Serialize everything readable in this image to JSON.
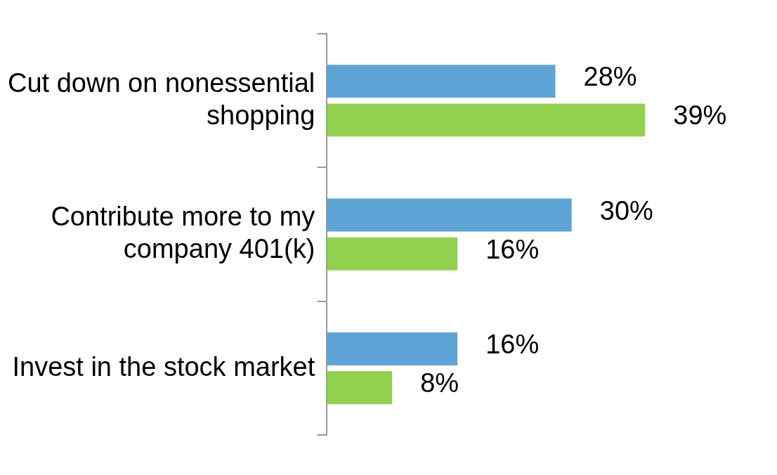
{
  "chart_data": {
    "type": "bar",
    "orientation": "horizontal",
    "categories": [
      "Cut down on nonessential shopping",
      "Contribute more to my company 401(k)",
      "Invest in the stock market"
    ],
    "series": [
      {
        "color": "#5ea4d4",
        "values": [
          28,
          30,
          16
        ],
        "value_labels": [
          "28%",
          "30%",
          "16%"
        ]
      },
      {
        "color": "#92d050",
        "values": [
          39,
          16,
          8
        ],
        "value_labels": [
          "39%",
          "16%",
          "8%"
        ]
      }
    ],
    "legend": false,
    "tick_labels": "y"
  }
}
